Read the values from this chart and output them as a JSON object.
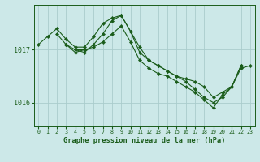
{
  "background_color": "#cce8e8",
  "grid_color": "#aacccc",
  "line_color": "#1a5c1a",
  "marker_color": "#1a5c1a",
  "title": "Graphe pression niveau de la mer (hPa)",
  "xlim": [
    -0.5,
    23.5
  ],
  "ylim": [
    1015.55,
    1017.85
  ],
  "yticks": [
    1016,
    1017
  ],
  "xticks": [
    0,
    1,
    2,
    3,
    4,
    5,
    6,
    7,
    8,
    9,
    10,
    11,
    12,
    13,
    14,
    15,
    16,
    17,
    18,
    19,
    20,
    21,
    22,
    23
  ],
  "series": [
    {
      "x": [
        0,
        1,
        2,
        3,
        4,
        5,
        6,
        7,
        8,
        9,
        10,
        11,
        12,
        13,
        14,
        15,
        16,
        17,
        18,
        19,
        20,
        21,
        22
      ],
      "y": [
        1017.1,
        1017.25,
        1017.4,
        1017.2,
        1017.05,
        1017.05,
        1017.25,
        1017.5,
        1017.6,
        1017.65,
        1017.35,
        1016.95,
        1016.8,
        1016.7,
        1016.6,
        1016.5,
        1016.45,
        1016.4,
        1016.3,
        1016.1,
        1016.2,
        1016.3,
        1016.7
      ]
    },
    {
      "x": [
        2,
        3,
        4,
        5,
        6,
        7,
        8,
        9,
        10,
        11,
        12,
        13,
        14,
        15,
        16,
        17,
        18,
        19,
        20,
        21,
        22
      ],
      "y": [
        1017.3,
        1017.1,
        1017.0,
        1016.95,
        1017.1,
        1017.3,
        1017.55,
        1017.65,
        1017.35,
        1017.05,
        1016.8,
        1016.7,
        1016.6,
        1016.5,
        1016.4,
        1016.25,
        1016.1,
        1016.0,
        1016.1,
        1016.3,
        1016.7
      ]
    },
    {
      "x": [
        3,
        4,
        5
      ],
      "y": [
        1017.1,
        1016.95,
        1017.0
      ]
    },
    {
      "x": [
        4,
        5,
        6,
        7,
        8,
        9,
        10,
        11,
        12,
        13,
        14,
        15,
        16,
        17,
        18,
        19,
        20,
        21,
        22,
        23
      ],
      "y": [
        1017.0,
        1017.0,
        1017.05,
        1017.15,
        1017.3,
        1017.45,
        1017.15,
        1016.8,
        1016.65,
        1016.55,
        1016.5,
        1016.4,
        1016.3,
        1016.2,
        1016.05,
        1015.9,
        1016.15,
        1016.3,
        1016.65,
        1016.7
      ]
    }
  ]
}
